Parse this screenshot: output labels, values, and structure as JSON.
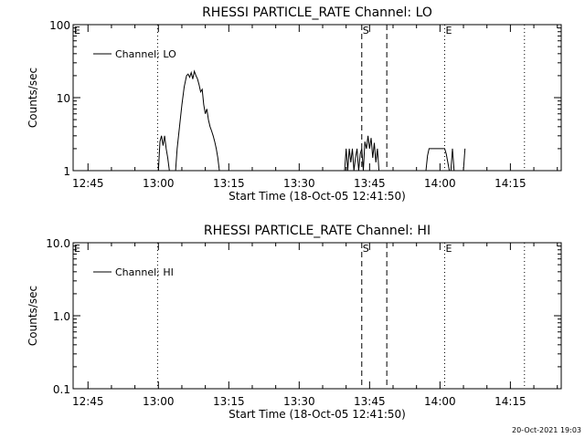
{
  "footer": "20-Oct-2021 19:03",
  "chart_data": [
    {
      "type": "line",
      "title": "RHESSI PARTICLE_RATE Channel: LO",
      "xlabel": "Start Time (18-Oct-05 12:41:50)",
      "ylabel": "Counts/sec",
      "yscale": "log",
      "ylim": [
        1,
        100
      ],
      "xlim": [
        "12:41:50",
        "14:25:50"
      ],
      "x_ticks": [
        "12:45",
        "13:00",
        "13:15",
        "13:30",
        "13:45",
        "14:00",
        "14:15"
      ],
      "y_ticks": [
        "1",
        "10",
        "100"
      ],
      "legend": {
        "placement": "top-left",
        "entries": [
          "Channel: LO"
        ]
      },
      "markers": [
        {
          "label": "E",
          "time": "12:41:50",
          "style": "dotted"
        },
        {
          "label": "",
          "time": "12:59:50",
          "style": "dotted"
        },
        {
          "label": "S",
          "time": "13:43:20",
          "style": "dashed"
        },
        {
          "label": "",
          "time": "13:48:40",
          "style": "dashed"
        },
        {
          "label": "E",
          "time": "14:01:00",
          "style": "dotted"
        },
        {
          "label": "",
          "time": "14:18:00",
          "style": "dotted"
        }
      ],
      "series": [
        {
          "name": "Channel: LO",
          "segments": [
            {
              "x": [
                "13:00:00",
                "13:00:20",
                "13:00:40",
                "13:01:00",
                "13:01:20",
                "13:01:40",
                "13:02:00",
                "13:02:20"
              ],
              "y": [
                1,
                2.5,
                3,
                2.2,
                3,
                2,
                1.5,
                1
              ]
            },
            {
              "x": [
                "13:03:40",
                "13:04:00",
                "13:04:30",
                "13:05:00",
                "13:05:30",
                "13:06:00",
                "13:06:20",
                "13:06:40",
                "13:07:00",
                "13:07:20",
                "13:07:40",
                "13:08:00",
                "13:08:20",
                "13:08:40",
                "13:09:00",
                "13:09:20",
                "13:09:40",
                "13:10:00",
                "13:10:20",
                "13:10:40",
                "13:11:00",
                "13:11:20",
                "13:11:40",
                "13:12:00",
                "13:12:20",
                "13:12:40",
                "13:13:00"
              ],
              "y": [
                1,
                2,
                4,
                8,
                14,
                20,
                21,
                19,
                22,
                18,
                23,
                20,
                18,
                15,
                12,
                13,
                8,
                6,
                7,
                5,
                4,
                3.5,
                3,
                2.5,
                2,
                1.5,
                1
              ]
            },
            {
              "x": [
                "13:39:40",
                "13:40:00",
                "13:40:20",
                "13:40:40",
                "13:41:00",
                "13:41:20",
                "13:41:40",
                "13:42:00",
                "13:42:20",
                "13:42:40",
                "13:43:00",
                "13:43:20",
                "13:43:40",
                "13:44:00",
                "13:44:20",
                "13:44:40",
                "13:45:00",
                "13:45:20",
                "13:45:40",
                "13:46:00",
                "13:46:20",
                "13:46:40",
                "13:47:00"
              ],
              "y": [
                1,
                2,
                1,
                2,
                1.3,
                2,
                1,
                1.5,
                2,
                1,
                1.7,
                2,
                1,
                2.5,
                2,
                3,
                2,
                2.8,
                1.5,
                2.4,
                1.3,
                2,
                1
              ]
            },
            {
              "x": [
                "13:57:00",
                "13:57:20",
                "13:57:40",
                "13:58:00",
                "13:59:00",
                "14:00:00",
                "14:01:00",
                "14:01:20",
                "14:01:40",
                "14:02:00"
              ],
              "y": [
                1,
                1.6,
                2,
                2,
                2,
                2,
                2,
                1.7,
                1.3,
                1
              ]
            },
            {
              "x": [
                "14:02:20",
                "14:02:40",
                "14:03:00"
              ],
              "y": [
                1,
                2,
                1
              ]
            },
            {
              "x": [
                "14:05:00",
                "14:05:20"
              ],
              "y": [
                1,
                2
              ]
            }
          ]
        }
      ]
    },
    {
      "type": "line",
      "title": "RHESSI PARTICLE_RATE Channel: HI",
      "xlabel": "Start Time (18-Oct-05 12:41:50)",
      "ylabel": "Counts/sec",
      "yscale": "log",
      "ylim": [
        0.1,
        10
      ],
      "xlim": [
        "12:41:50",
        "14:25:50"
      ],
      "x_ticks": [
        "12:45",
        "13:00",
        "13:15",
        "13:30",
        "13:45",
        "14:00",
        "14:15"
      ],
      "y_ticks": [
        "0.1",
        "1.0",
        "10.0"
      ],
      "legend": {
        "placement": "top-left",
        "entries": [
          "Channel: HI"
        ]
      },
      "markers": [
        {
          "label": "E",
          "time": "12:41:50",
          "style": "dotted"
        },
        {
          "label": "",
          "time": "12:59:50",
          "style": "dotted"
        },
        {
          "label": "S",
          "time": "13:43:20",
          "style": "dashed"
        },
        {
          "label": "",
          "time": "13:48:40",
          "style": "dashed"
        },
        {
          "label": "E",
          "time": "14:01:00",
          "style": "dotted"
        },
        {
          "label": "",
          "time": "14:18:00",
          "style": "dotted"
        }
      ],
      "series": [
        {
          "name": "Channel: HI",
          "segments": []
        }
      ]
    }
  ]
}
